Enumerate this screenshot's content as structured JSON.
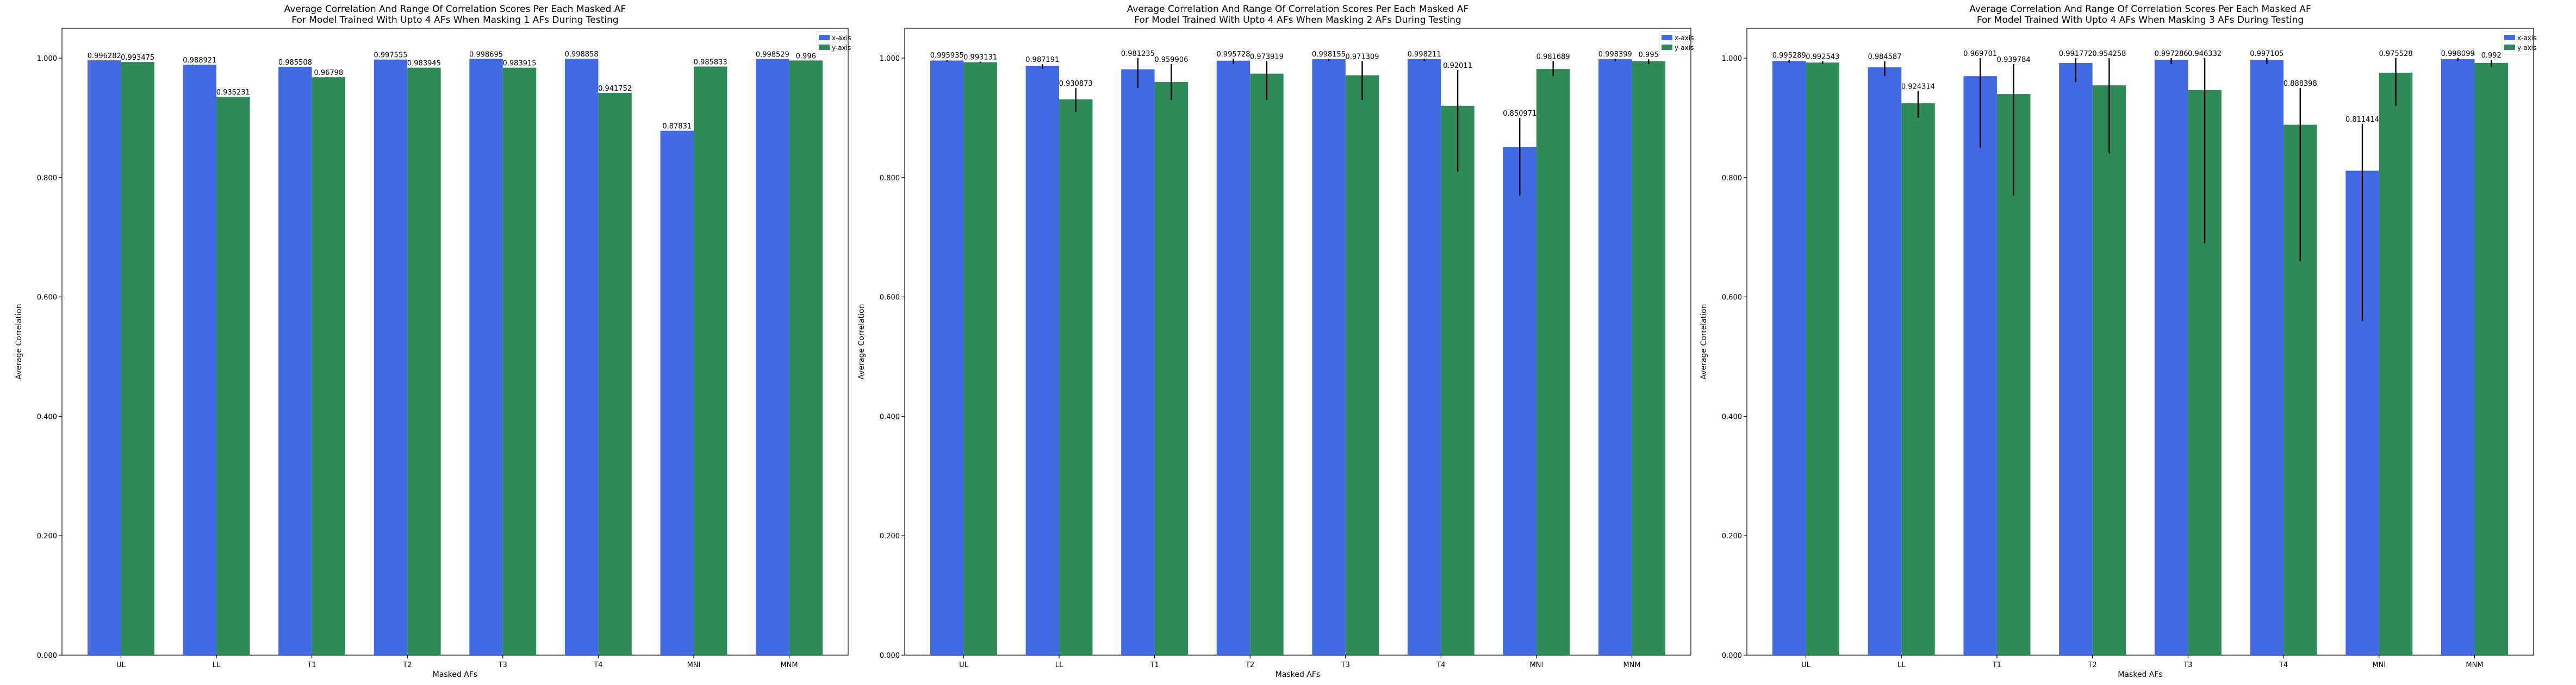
{
  "colors": {
    "x_axis": "#4169E1",
    "y_axis": "#2E8B57",
    "error_bar": "#000000"
  },
  "chart_data": [
    {
      "type": "bar",
      "title": "Average Correlation And Range Of Correlation Scores Per Each Masked AF",
      "subtitle": "For Model Trained With Upto 4 AFs When Masking 1 AFs During Testing",
      "xlabel": "Masked AFs",
      "ylabel": "Average Correlation",
      "ylim": [
        0,
        1.05
      ],
      "yticks": [
        "0.000",
        "0.200",
        "0.400",
        "0.600",
        "0.800",
        "1.000"
      ],
      "grid": false,
      "legend": "top-right",
      "categories": [
        "UL",
        "LL",
        "T1",
        "T2",
        "T3",
        "T4",
        "MNI",
        "MNM"
      ],
      "series": [
        {
          "name": "x-axis",
          "values": [
            0.996282,
            0.988921,
            0.985508,
            0.997555,
            0.998695,
            0.998858,
            0.87831,
            0.998529
          ],
          "labels": [
            "0.996282",
            "0.988921",
            "0.985508",
            "0.997555",
            "0.998695",
            "0.998858",
            "0.87831",
            "0.998529"
          ],
          "err_low": [
            0.996282,
            0.988921,
            0.985508,
            0.997555,
            0.998695,
            0.998858,
            0.87831,
            0.998529
          ],
          "err_high": [
            0.996282,
            0.988921,
            0.985508,
            0.997555,
            0.998695,
            0.998858,
            0.87831,
            0.998529
          ]
        },
        {
          "name": "y-axis",
          "values": [
            0.993475,
            0.935231,
            0.96798,
            0.983945,
            0.983915,
            0.941752,
            0.985833,
            0.996
          ],
          "labels": [
            "0.993475",
            "0.935231",
            "0.96798",
            "0.983945",
            "0.983915",
            "0.941752",
            "0.985833",
            "0.996"
          ],
          "err_low": [
            0.993475,
            0.935231,
            0.96798,
            0.983945,
            0.983915,
            0.941752,
            0.985833,
            0.996
          ],
          "err_high": [
            0.993475,
            0.935231,
            0.96798,
            0.983945,
            0.983915,
            0.941752,
            0.985833,
            0.996
          ]
        }
      ]
    },
    {
      "type": "bar",
      "title": "Average Correlation And Range Of Correlation Scores Per Each Masked AF",
      "subtitle": "For Model Trained With Upto 4 AFs When Masking 2 AFs During Testing",
      "xlabel": "Masked AFs",
      "ylabel": "Average Correlation",
      "ylim": [
        0,
        1.05
      ],
      "yticks": [
        "0.000",
        "0.200",
        "0.400",
        "0.600",
        "0.800",
        "1.000"
      ],
      "grid": false,
      "legend": "top-right",
      "categories": [
        "UL",
        "LL",
        "T1",
        "T2",
        "T3",
        "T4",
        "MNI",
        "MNM"
      ],
      "series": [
        {
          "name": "x-axis",
          "values": [
            0.995935,
            0.987191,
            0.981235,
            0.995728,
            0.998155,
            0.998211,
            0.850971,
            0.998399
          ],
          "labels": [
            "0.995935",
            "0.987191",
            "0.981235",
            "0.995728",
            "0.998155",
            "0.998211",
            "0.850971",
            "0.998399"
          ],
          "err_low": [
            0.994,
            0.982,
            0.95,
            0.99,
            0.995,
            0.995,
            0.77,
            0.995
          ],
          "err_high": [
            0.997,
            0.99,
            1.0,
            0.999,
            0.999,
            0.999,
            0.9,
            0.999
          ]
        },
        {
          "name": "y-axis",
          "values": [
            0.993131,
            0.930873,
            0.959906,
            0.973919,
            0.971309,
            0.92011,
            0.981689,
            0.995
          ],
          "labels": [
            "0.993131",
            "0.930873",
            "0.959906",
            "0.973919",
            "0.971309",
            "0.92011",
            "0.981689",
            "0.995"
          ],
          "err_low": [
            0.992,
            0.91,
            0.93,
            0.93,
            0.93,
            0.81,
            0.97,
            0.99
          ],
          "err_high": [
            0.994,
            0.95,
            0.99,
            0.995,
            0.995,
            0.98,
            0.995,
            0.998
          ]
        }
      ]
    },
    {
      "type": "bar",
      "title": "Average Correlation And Range Of Correlation Scores Per Each Masked AF",
      "subtitle": "For Model Trained With Upto 4 AFs When Masking 3 AFs During Testing",
      "xlabel": "Masked AFs",
      "ylabel": "Average Correlation",
      "ylim": [
        0,
        1.05
      ],
      "yticks": [
        "0.000",
        "0.200",
        "0.400",
        "0.600",
        "0.800",
        "1.000"
      ],
      "grid": false,
      "legend": "top-right",
      "categories": [
        "UL",
        "LL",
        "T1",
        "T2",
        "T3",
        "T4",
        "MNI",
        "MNM"
      ],
      "series": [
        {
          "name": "x-axis",
          "values": [
            0.995289,
            0.984587,
            0.969701,
            0.991772,
            0.997286,
            0.997105,
            0.811414,
            0.998099
          ],
          "labels": [
            "0.995289",
            "0.984587",
            "0.969701",
            "0.991772",
            "0.997286",
            "0.997105",
            "0.811414",
            "0.998099"
          ],
          "err_low": [
            0.992,
            0.97,
            0.85,
            0.96,
            0.99,
            0.99,
            0.56,
            0.995
          ],
          "err_high": [
            0.997,
            0.995,
            1.0,
            1.0,
            1.0,
            1.0,
            0.89,
            1.0
          ]
        },
        {
          "name": "y-axis",
          "values": [
            0.992543,
            0.924314,
            0.939784,
            0.954258,
            0.946332,
            0.888398,
            0.975528,
            0.992
          ],
          "labels": [
            "0.992543",
            "0.924314",
            "0.939784",
            "0.954258",
            "0.946332",
            "0.888398",
            "0.975528",
            "0.992"
          ],
          "err_low": [
            0.99,
            0.9,
            0.77,
            0.84,
            0.69,
            0.66,
            0.92,
            0.985
          ],
          "err_high": [
            0.995,
            0.945,
            0.99,
            1.0,
            1.0,
            0.95,
            1.0,
            0.997
          ]
        }
      ]
    }
  ]
}
